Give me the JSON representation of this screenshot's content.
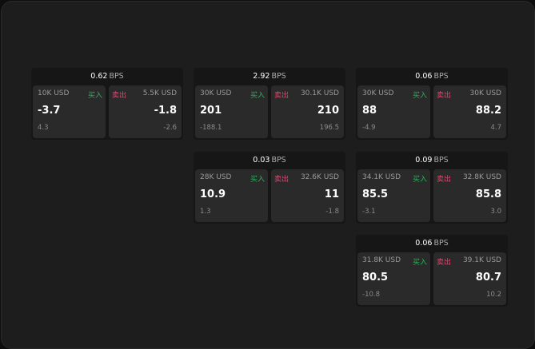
{
  "colors": {
    "buy": "#2fae5f",
    "sell": "#e0466e",
    "background": "#1d1d1d"
  },
  "labels": {
    "buy": "买入",
    "sell": "卖出",
    "unit": "BPS"
  },
  "rows": [
    [
      {
        "spread": "0.62",
        "bid_qty": "10K USD",
        "bid": "-3.7",
        "bid_change": "4.3",
        "ask_qty": "5.5K USD",
        "ask": "-1.8",
        "ask_change": "-2.6"
      },
      {
        "spread": "2.92",
        "bid_qty": "30K USD",
        "bid": "201",
        "bid_change": "-188.1",
        "ask_qty": "30.1K USD",
        "ask": "210",
        "ask_change": "196.5"
      },
      {
        "spread": "0.06",
        "bid_qty": "30K USD",
        "bid": "88",
        "bid_change": "-4.9",
        "ask_qty": "30K USD",
        "ask": "88.2",
        "ask_change": "4.7"
      }
    ],
    [
      null,
      {
        "spread": "0.03",
        "bid_qty": "28K USD",
        "bid": "10.9",
        "bid_change": "1.3",
        "ask_qty": "32.6K USD",
        "ask": "11",
        "ask_change": "-1.8"
      },
      {
        "spread": "0.09",
        "bid_qty": "34.1K USD",
        "bid": "85.5",
        "bid_change": "-3.1",
        "ask_qty": "32.8K USD",
        "ask": "85.8",
        "ask_change": "3.0"
      }
    ],
    [
      null,
      null,
      {
        "spread": "0.06",
        "bid_qty": "31.8K USD",
        "bid": "80.5",
        "bid_change": "-10.8",
        "ask_qty": "39.1K USD",
        "ask": "80.7",
        "ask_change": "10.2"
      }
    ]
  ]
}
